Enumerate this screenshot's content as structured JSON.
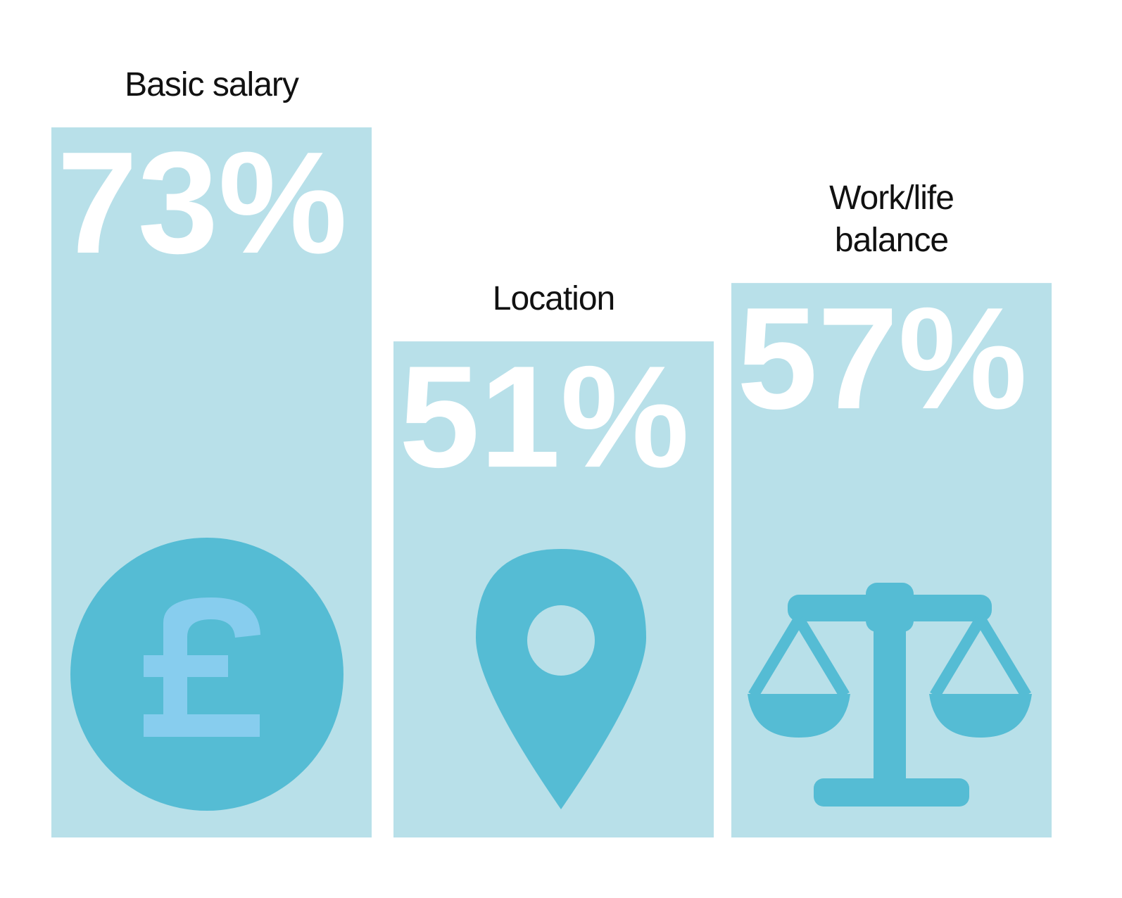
{
  "chart_data": {
    "type": "bar",
    "categories": [
      "Basic salary",
      "Location",
      "Work/life balance"
    ],
    "values": [
      73,
      51,
      57
    ],
    "value_labels": [
      "73%",
      "51%",
      "57%"
    ],
    "color": "#b8e0e9"
  }
}
